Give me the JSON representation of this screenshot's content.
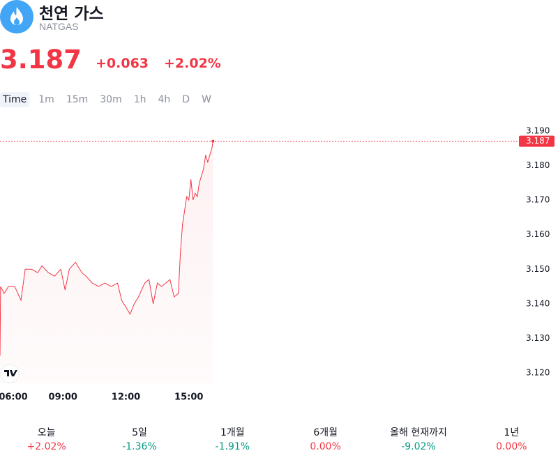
{
  "header": {
    "title": "천연 가스",
    "symbol": "NATGAS",
    "price": "3.187",
    "change": "+0.063",
    "change_percent": "+2.02%"
  },
  "timeframes": {
    "items": [
      "Time",
      "1m",
      "15m",
      "30m",
      "1h",
      "4h",
      "D",
      "W"
    ],
    "selected": 0
  },
  "chart_data": {
    "type": "line",
    "color": "#f23645",
    "x": [
      6.0,
      6.03,
      6.2,
      6.4,
      6.7,
      7.0,
      7.2,
      7.5,
      7.8,
      8.0,
      8.3,
      8.6,
      8.9,
      9.1,
      9.3,
      9.6,
      9.9,
      10.1,
      10.4,
      10.7,
      11.0,
      11.3,
      11.6,
      11.8,
      12.0,
      12.2,
      12.4,
      12.6,
      12.9,
      13.1,
      13.3,
      13.5,
      13.7,
      13.9,
      14.1,
      14.3,
      14.5,
      14.6,
      14.7,
      14.8,
      14.9,
      15.0,
      15.1,
      15.2,
      15.3,
      15.4,
      15.5,
      15.6,
      15.7,
      15.8,
      15.9,
      16.0,
      16.1,
      16.15
    ],
    "values": [
      3.125,
      3.145,
      3.143,
      3.145,
      3.145,
      3.141,
      3.15,
      3.15,
      3.149,
      3.151,
      3.149,
      3.148,
      3.15,
      3.144,
      3.15,
      3.152,
      3.149,
      3.148,
      3.146,
      3.145,
      3.146,
      3.145,
      3.146,
      3.141,
      3.139,
      3.137,
      3.14,
      3.142,
      3.146,
      3.147,
      3.14,
      3.146,
      3.145,
      3.146,
      3.147,
      3.142,
      3.143,
      3.155,
      3.163,
      3.167,
      3.171,
      3.17,
      3.176,
      3.17,
      3.172,
      3.171,
      3.175,
      3.177,
      3.179,
      3.183,
      3.181,
      3.183,
      3.185,
      3.187
    ],
    "last_value": 3.187,
    "xlim": [
      6,
      30.6
    ],
    "xticks": [
      {
        "value": 6,
        "label": "06:00"
      },
      {
        "value": 9,
        "label": "09:00"
      },
      {
        "value": 12,
        "label": "12:00"
      },
      {
        "value": 15,
        "label": "15:00"
      }
    ],
    "ylim": [
      3.117,
      3.1956
    ],
    "yticks": [
      {
        "value": 3.12,
        "label": "3.120"
      },
      {
        "value": 3.13,
        "label": "3.130"
      },
      {
        "value": 3.14,
        "label": "3.140"
      },
      {
        "value": 3.15,
        "label": "3.150"
      },
      {
        "value": 3.16,
        "label": "3.160"
      },
      {
        "value": 3.17,
        "label": "3.170"
      },
      {
        "value": 3.18,
        "label": "3.180"
      },
      {
        "value": 3.19,
        "label": "3.190"
      }
    ]
  },
  "performance": [
    {
      "label": "오늘",
      "value": "+2.02%",
      "color": "#f23645"
    },
    {
      "label": "5일",
      "value": "-1.36%",
      "color": "#089981"
    },
    {
      "label": "1개월",
      "value": "-1.91%",
      "color": "#089981"
    },
    {
      "label": "6개월",
      "value": "0.00%",
      "color": "#f23645"
    },
    {
      "label": "올해 현재까지",
      "value": "-9.02%",
      "color": "#089981"
    },
    {
      "label": "1년",
      "value": "0.00%",
      "color": "#f23645"
    }
  ]
}
